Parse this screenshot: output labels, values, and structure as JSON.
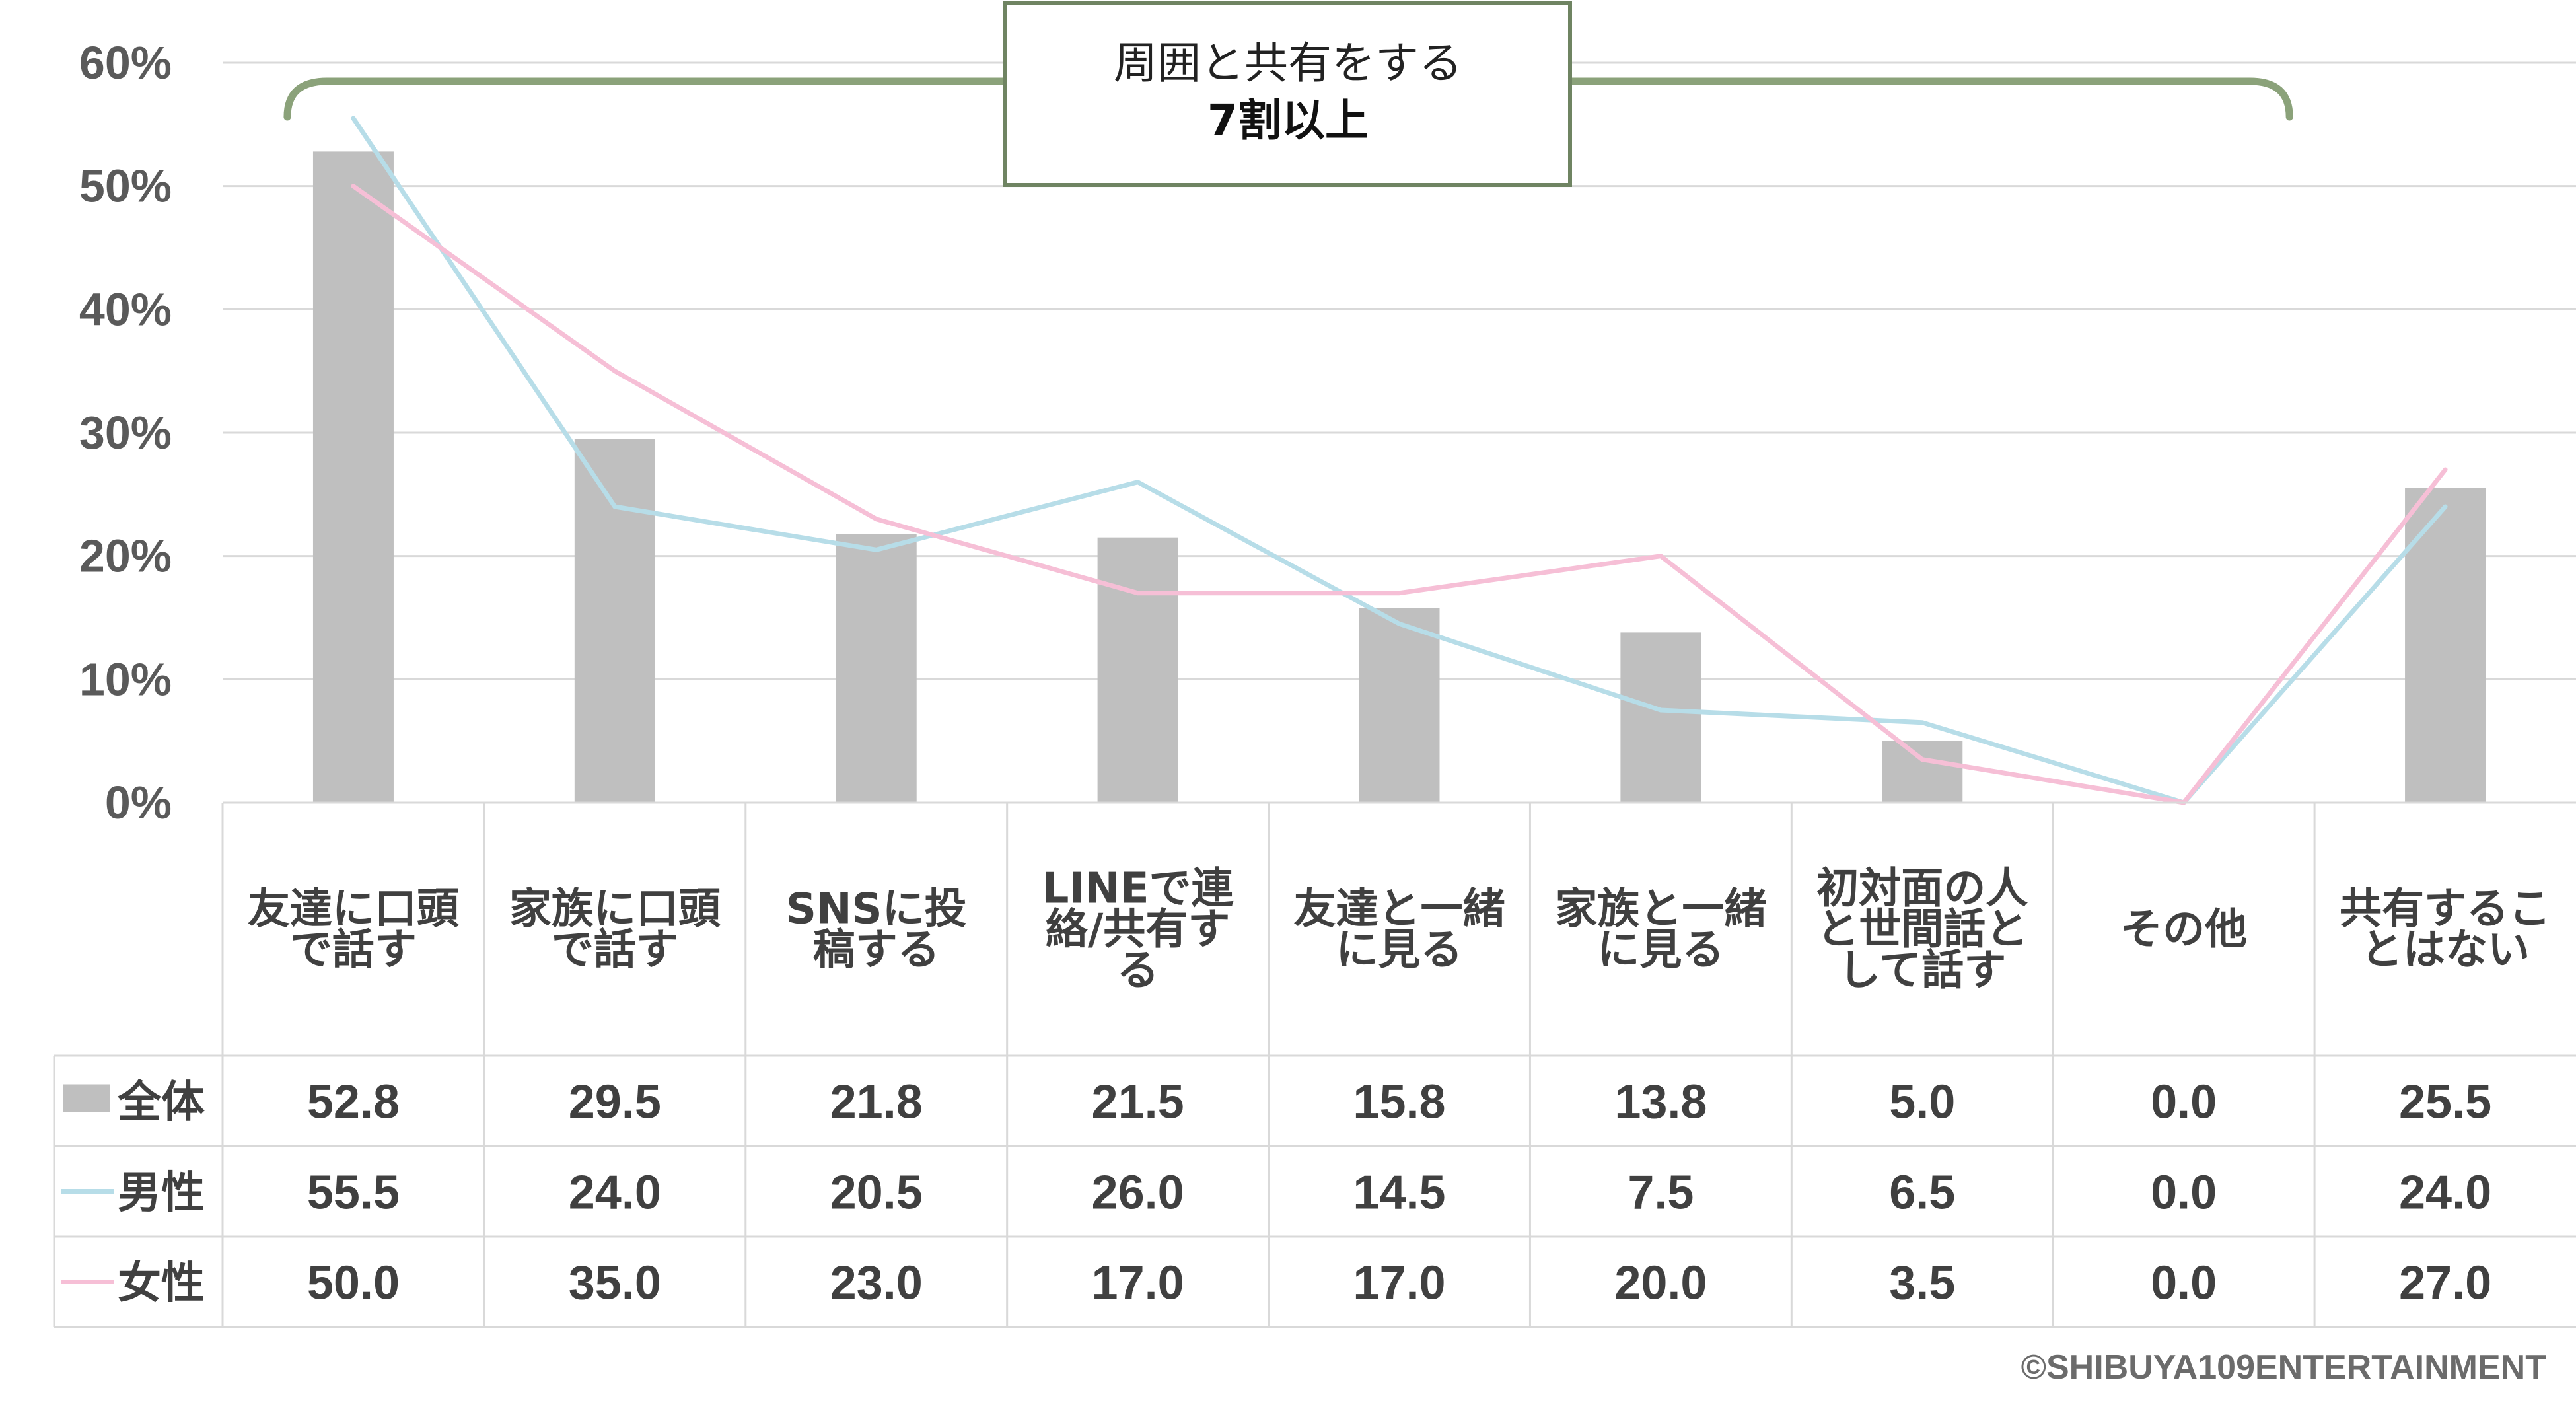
{
  "chart_data": {
    "type": "bar",
    "title": "",
    "xlabel": "",
    "ylabel": "",
    "ylim": [
      0,
      60
    ],
    "grid": true,
    "y_ticks": [
      "0%",
      "10%",
      "20%",
      "30%",
      "40%",
      "50%",
      "60%"
    ],
    "categories": [
      [
        "友達に口頭",
        "で話す"
      ],
      [
        "家族に口頭",
        "で話す"
      ],
      [
        "SNSに投",
        "稿する"
      ],
      [
        "LINEで連",
        "絡/共有す",
        "る"
      ],
      [
        "友達と一緒",
        "に見る"
      ],
      [
        "家族と一緒",
        "に見る"
      ],
      [
        "初対面の人",
        "と世間話と",
        "して話す"
      ],
      [
        "その他"
      ],
      [
        "共有するこ",
        "とはない"
      ]
    ],
    "series": [
      {
        "name": "全体",
        "type": "bar",
        "color": "#bfbfbf",
        "values": [
          52.8,
          29.5,
          21.8,
          21.5,
          15.8,
          13.8,
          5.0,
          0.0,
          25.5
        ],
        "labels": [
          "52.8",
          "29.5",
          "21.8",
          "21.5",
          "15.8",
          "13.8",
          "5.0",
          "0.0",
          "25.5"
        ]
      },
      {
        "name": "男性",
        "type": "line",
        "color": "#b7dde8",
        "values": [
          55.5,
          24.0,
          20.5,
          26.0,
          14.5,
          7.5,
          6.5,
          0.0,
          24.0
        ],
        "labels": [
          "55.5",
          "24.0",
          "20.5",
          "26.0",
          "14.5",
          "7.5",
          "6.5",
          "0.0",
          "24.0"
        ]
      },
      {
        "name": "女性",
        "type": "line",
        "color": "#f6bfd6",
        "values": [
          50.0,
          35.0,
          23.0,
          17.0,
          17.0,
          20.0,
          3.5,
          0.0,
          27.0
        ],
        "labels": [
          "50.0",
          "35.0",
          "23.0",
          "17.0",
          "17.0",
          "20.0",
          "3.5",
          "0.0",
          "27.0"
        ]
      }
    ],
    "annotation": {
      "line1": "周囲と共有をする",
      "line2": "7割以上",
      "color": "#8ba27a",
      "span": "友達に口頭で話す〜その他"
    }
  },
  "copyright": "©SHIBUYA109ENTERTAINMENT"
}
